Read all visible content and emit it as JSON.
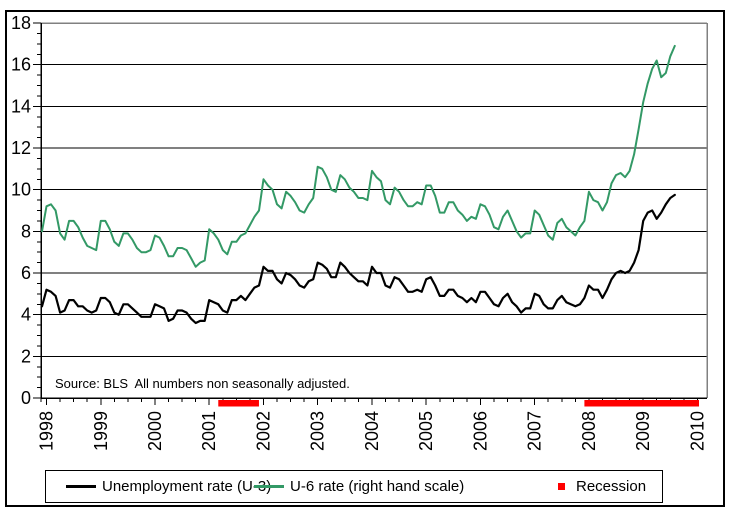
{
  "chart_data": {
    "type": "line",
    "title": "",
    "frequency": "monthly",
    "start_month": "1997-12",
    "end_month": "2009-08",
    "source_note": "Source: BLS  All numbers non seasonally adjusted.",
    "y_axis": {
      "min": 0,
      "max": 18,
      "major_tick_step": 2,
      "minor_tick_step": 0.5,
      "tick_labels": [
        "0",
        "2",
        "4",
        "6",
        "8",
        "10",
        "12",
        "14",
        "16",
        "18"
      ],
      "grid": true
    },
    "x_axis": {
      "tick_years": [
        "1998",
        "1999",
        "2000",
        "2001",
        "2002",
        "2003",
        "2004",
        "2005",
        "2006",
        "2007",
        "2008",
        "2009",
        "2010"
      ],
      "minor_ticks": "quarterly"
    },
    "recession_color": "#ff0000",
    "recessions": [
      {
        "start": "2001-03",
        "end": "2001-12"
      },
      {
        "start": "2007-12",
        "end": "ongoing"
      }
    ],
    "series": [
      {
        "name": "Unemployment rate (U-3)",
        "color": "#000000",
        "axis": "left",
        "values": [
          4.4,
          5.2,
          5.1,
          4.9,
          4.1,
          4.2,
          4.7,
          4.7,
          4.4,
          4.4,
          4.2,
          4.1,
          4.2,
          4.8,
          4.8,
          4.6,
          4.1,
          4.0,
          4.5,
          4.5,
          4.3,
          4.1,
          3.9,
          3.9,
          3.9,
          4.5,
          4.4,
          4.3,
          3.7,
          3.8,
          4.2,
          4.2,
          4.1,
          3.8,
          3.6,
          3.7,
          3.7,
          4.7,
          4.6,
          4.5,
          4.2,
          4.1,
          4.7,
          4.7,
          4.9,
          4.7,
          5.0,
          5.3,
          5.4,
          6.3,
          6.1,
          6.1,
          5.7,
          5.5,
          6.0,
          5.9,
          5.7,
          5.4,
          5.3,
          5.6,
          5.7,
          6.5,
          6.4,
          6.2,
          5.8,
          5.8,
          6.5,
          6.3,
          6.0,
          5.8,
          5.6,
          5.6,
          5.4,
          6.3,
          6.0,
          6.0,
          5.4,
          5.3,
          5.8,
          5.7,
          5.4,
          5.1,
          5.1,
          5.2,
          5.1,
          5.7,
          5.8,
          5.4,
          4.9,
          4.9,
          5.2,
          5.2,
          4.9,
          4.8,
          4.6,
          4.8,
          4.6,
          5.1,
          5.1,
          4.8,
          4.5,
          4.4,
          4.8,
          5.0,
          4.6,
          4.4,
          4.1,
          4.3,
          4.3,
          5.0,
          4.9,
          4.5,
          4.3,
          4.3,
          4.7,
          4.9,
          4.6,
          4.5,
          4.4,
          4.5,
          4.8,
          5.4,
          5.2,
          5.2,
          4.8,
          5.2,
          5.7,
          6.0,
          6.1,
          6.0,
          6.1,
          6.5,
          7.1,
          8.5,
          8.9,
          9.0,
          8.6,
          8.9,
          9.3,
          9.6,
          9.75
        ]
      },
      {
        "name": "U-6 rate (right hand scale)",
        "color": "#339966",
        "axis": "right",
        "values": [
          8.0,
          9.2,
          9.3,
          9.0,
          7.9,
          7.6,
          8.5,
          8.5,
          8.2,
          7.7,
          7.3,
          7.2,
          7.1,
          8.5,
          8.5,
          8.1,
          7.5,
          7.3,
          7.9,
          7.9,
          7.6,
          7.2,
          7.0,
          7.0,
          7.1,
          7.8,
          7.7,
          7.3,
          6.8,
          6.8,
          7.2,
          7.2,
          7.1,
          6.7,
          6.3,
          6.5,
          6.6,
          8.1,
          7.9,
          7.6,
          7.1,
          6.9,
          7.5,
          7.5,
          7.8,
          7.9,
          8.3,
          8.7,
          9.0,
          10.5,
          10.2,
          10.0,
          9.3,
          9.1,
          9.9,
          9.7,
          9.4,
          9.0,
          8.9,
          9.3,
          9.6,
          11.1,
          11.0,
          10.6,
          10.0,
          9.9,
          10.7,
          10.5,
          10.1,
          9.9,
          9.6,
          9.6,
          9.5,
          10.9,
          10.6,
          10.4,
          9.5,
          9.3,
          10.1,
          9.9,
          9.5,
          9.2,
          9.2,
          9.4,
          9.3,
          10.2,
          10.2,
          9.7,
          8.9,
          8.9,
          9.4,
          9.4,
          9.0,
          8.8,
          8.5,
          8.7,
          8.6,
          9.3,
          9.2,
          8.8,
          8.2,
          8.1,
          8.7,
          9.0,
          8.5,
          8.0,
          7.7,
          7.9,
          7.9,
          9.0,
          8.8,
          8.3,
          7.8,
          7.6,
          8.4,
          8.6,
          8.2,
          8.0,
          7.8,
          8.2,
          8.5,
          9.9,
          9.5,
          9.4,
          9.0,
          9.4,
          10.3,
          10.7,
          10.8,
          10.6,
          10.9,
          11.7,
          12.9,
          14.2,
          15.1,
          15.8,
          16.2,
          15.4,
          15.6,
          16.4,
          16.9
        ]
      }
    ]
  },
  "legend": {
    "items": [
      {
        "label": "Unemployment rate (U-3)",
        "marker": "line",
        "color": "#000000"
      },
      {
        "label": "U-6 rate (right hand scale)",
        "marker": "line",
        "color": "#339966"
      },
      {
        "label": "Recession",
        "marker": "square",
        "color": "#ff0000"
      }
    ]
  }
}
